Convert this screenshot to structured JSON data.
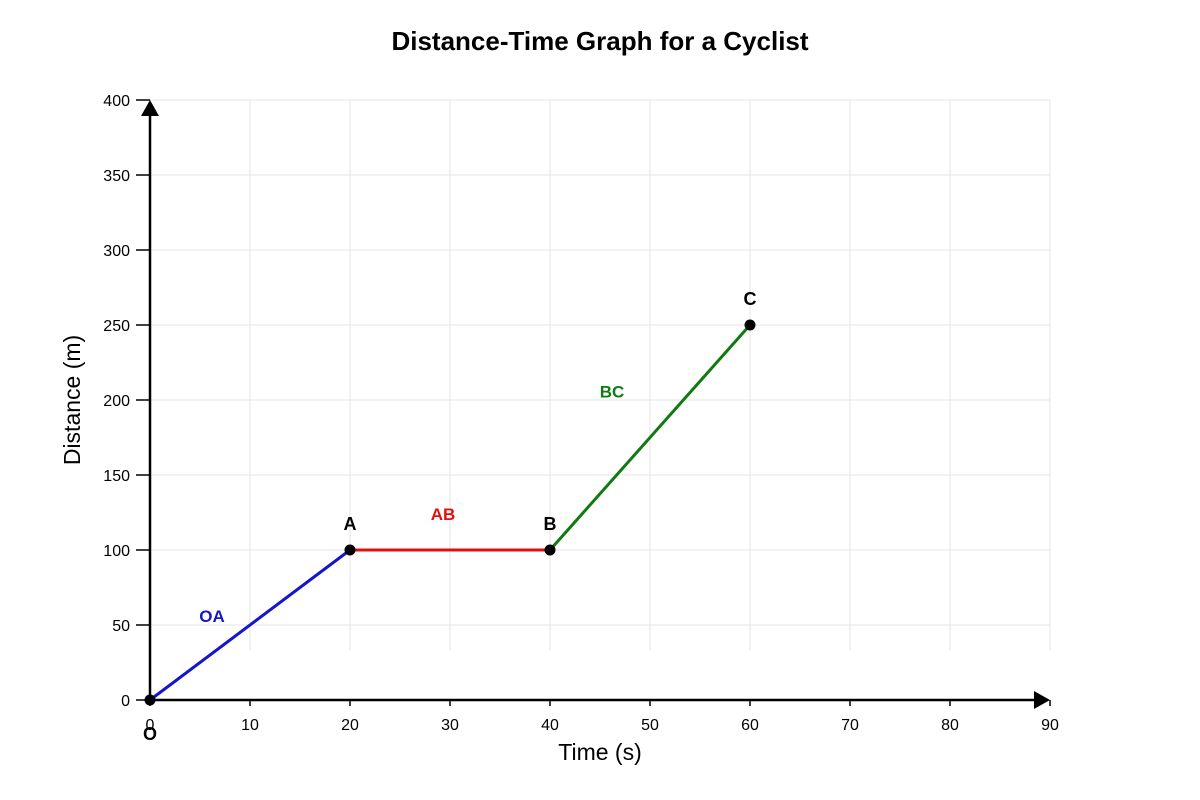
{
  "chart_data": {
    "type": "line",
    "title": "Distance-Time Graph for a Cyclist",
    "xlabel": "Time (s)",
    "ylabel": "Distance (m)",
    "xlim": [
      0,
      90
    ],
    "ylim": [
      0,
      400
    ],
    "xticks": [
      0,
      10,
      20,
      30,
      40,
      50,
      60,
      70,
      80,
      90
    ],
    "yticks": [
      0,
      50,
      100,
      150,
      200,
      250,
      300,
      350,
      400
    ],
    "grid": true,
    "points": [
      {
        "label": "O",
        "x": 0,
        "y": 0
      },
      {
        "label": "A",
        "x": 20,
        "y": 100
      },
      {
        "label": "B",
        "x": 40,
        "y": 100
      },
      {
        "label": "C",
        "x": 60,
        "y": 250
      }
    ],
    "segments": [
      {
        "label": "OA",
        "from": [
          0,
          0
        ],
        "to": [
          20,
          100
        ],
        "color": "#1515cc"
      },
      {
        "label": "AB",
        "from": [
          20,
          100
        ],
        "to": [
          40,
          100
        ],
        "color": "#e01010"
      },
      {
        "label": "BC",
        "from": [
          40,
          100
        ],
        "to": [
          60,
          250
        ],
        "color": "#117a11"
      }
    ],
    "colors": {
      "axis": "#000000",
      "grid": "#e6e6e6",
      "point": "#000000"
    }
  }
}
